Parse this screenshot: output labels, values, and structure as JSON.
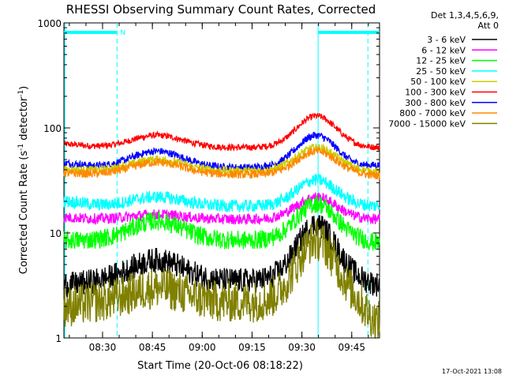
{
  "chart_data": {
    "type": "line",
    "title": "RHESSI Observing Summary Count Rates, Corrected",
    "xlabel": "Start Time (20-Oct-06 08:18:22)",
    "ylabel_main": "Corrected Count Rate (s",
    "ylabel_sup1": "-1",
    "ylabel_mid": " detector",
    "ylabel_sup2": "-1",
    "ylabel_end": ")",
    "y_scale": "log",
    "ylim": [
      1,
      1000
    ],
    "xlim_minutes": [
      0,
      95
    ],
    "y_ticks": [
      {
        "value": 1,
        "label": "1"
      },
      {
        "value": 10,
        "label": "10"
      },
      {
        "value": 100,
        "label": "100"
      },
      {
        "value": 1000,
        "label": "1000"
      }
    ],
    "x_ticks": [
      {
        "value": 11.63,
        "label": "08:30"
      },
      {
        "value": 26.63,
        "label": "08:45"
      },
      {
        "value": 41.63,
        "label": "09:00"
      },
      {
        "value": 56.63,
        "label": "09:15"
      },
      {
        "value": 71.63,
        "label": "09:30"
      },
      {
        "value": 86.63,
        "label": "09:45"
      }
    ],
    "legend": {
      "position": "top-right",
      "header": [
        "Det 1,3,4,5,6,9,",
        "Att 0"
      ],
      "entries": [
        {
          "label": "3 - 6 keV",
          "color": "#000000"
        },
        {
          "label": "6 - 12 keV",
          "color": "#ff00ff"
        },
        {
          "label": "12 - 25 keV",
          "color": "#00ff00"
        },
        {
          "label": "25 - 50 keV",
          "color": "#00ffff"
        },
        {
          "label": "50 - 100 keV",
          "color": "#cccc00"
        },
        {
          "label": "100 - 300 keV",
          "color": "#ff0000"
        },
        {
          "label": "300 - 800 keV",
          "color": "#0000ff"
        },
        {
          "label": "800 - 7000 keV",
          "color": "#ff8800"
        },
        {
          "label": "7000 - 15000 keV",
          "color": "#808000"
        }
      ]
    },
    "annotations": {
      "flag_label": "N",
      "flag_color": "#00ffff",
      "night_intervals_minutes": [
        [
          0,
          16
        ],
        [
          76.5,
          95
        ]
      ],
      "vertical_markers_minutes": [
        16,
        76.5,
        91.5
      ]
    },
    "timestamp": "17-Oct-2021 13:08",
    "series_shape": {
      "description": "Each series: baseline, broad bump near 08:45, peak near 09:34",
      "bump1_center_min": 28,
      "peak_center_min": 76
    },
    "series": [
      {
        "color": "#ff0000",
        "base": 65,
        "bump1": 85,
        "peak": 130,
        "start": 70,
        "end": 65,
        "noise": 0.03
      },
      {
        "color": "#0000ff",
        "base": 42,
        "bump1": 60,
        "peak": 85,
        "start": 46,
        "end": 44,
        "noise": 0.035
      },
      {
        "color": "#cccc00",
        "base": 39,
        "bump1": 50,
        "peak": 65,
        "start": 40,
        "end": 38,
        "noise": 0.04
      },
      {
        "color": "#ff8800",
        "base": 36,
        "bump1": 47,
        "peak": 60,
        "start": 37,
        "end": 35,
        "noise": 0.04
      },
      {
        "color": "#00ffff",
        "base": 18,
        "bump1": 22,
        "peak": 32,
        "start": 20,
        "end": 18,
        "noise": 0.06
      },
      {
        "color": "#ff00ff",
        "base": 13.5,
        "bump1": 15,
        "peak": 22,
        "start": 14,
        "end": 13.5,
        "noise": 0.05
      },
      {
        "color": "#00ff00",
        "base": 8.5,
        "bump1": 13,
        "peak": 19,
        "start": 8.5,
        "end": 8,
        "noise": 0.09
      },
      {
        "color": "#000000",
        "base": 3.5,
        "bump1": 5.5,
        "peak": 12,
        "start": 3.2,
        "end": 3.2,
        "noise": 0.12
      },
      {
        "color": "#808000",
        "base": 2.2,
        "bump1": 3.0,
        "peak": 8.5,
        "start": 2.0,
        "end": 1.4,
        "noise": 0.2
      }
    ]
  }
}
